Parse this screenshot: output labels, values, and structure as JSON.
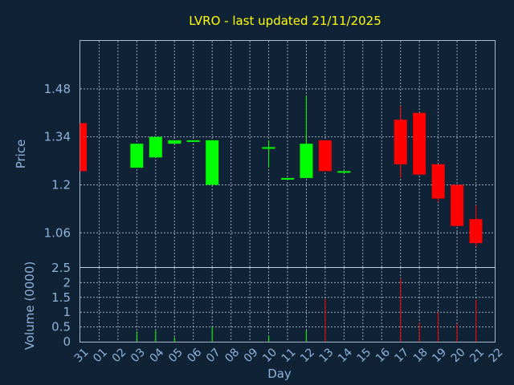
{
  "chart_data": {
    "type": "candlestick",
    "title": "LVRO - last updated 21/11/2025",
    "xlabel": "Day",
    "price_ylabel": "Price",
    "volume_ylabel": "Volume (0000)",
    "x_ticks": [
      "31",
      "01",
      "02",
      "03",
      "04",
      "05",
      "06",
      "07",
      "08",
      "09",
      "10",
      "11",
      "12",
      "13",
      "14",
      "15",
      "16",
      "17",
      "18",
      "19",
      "20",
      "21",
      "22"
    ],
    "price_ticks": [
      "1.06",
      "1.2",
      "1.34",
      "1.48"
    ],
    "price_tick_values": [
      1.06,
      1.2,
      1.34,
      1.48
    ],
    "price_ylim": [
      0.96,
      1.62
    ],
    "volume_ticks": [
      "0",
      "0.5",
      "1",
      "1.5",
      "2",
      "2.5"
    ],
    "volume_tick_values": [
      0,
      0.5,
      1,
      1.5,
      2,
      2.5
    ],
    "volume_ylim": [
      0,
      2.5
    ],
    "colors": {
      "up": "#00ff00",
      "down": "#ff0000",
      "background": "#0f2236",
      "title": "#ffff00",
      "text": "#8fb3d9"
    },
    "candles": [
      {
        "day": "31",
        "open": 1.38,
        "high": 1.38,
        "low": 1.24,
        "close": 1.24,
        "volume": 0
      },
      {
        "day": "03",
        "open": 1.25,
        "high": 1.32,
        "low": 1.25,
        "close": 1.32,
        "volume": 0.35
      },
      {
        "day": "04",
        "open": 1.28,
        "high": 1.34,
        "low": 1.28,
        "close": 1.34,
        "volume": 0.38
      },
      {
        "day": "05",
        "open": 1.32,
        "high": 1.33,
        "low": 1.32,
        "close": 1.33,
        "volume": 0.15
      },
      {
        "day": "06",
        "open": 1.33,
        "high": 1.33,
        "low": 1.33,
        "close": 1.33,
        "volume": 0
      },
      {
        "day": "07",
        "open": 1.2,
        "high": 1.33,
        "low": 1.2,
        "close": 1.33,
        "volume": 0.5
      },
      {
        "day": "10",
        "open": 1.31,
        "high": 1.33,
        "low": 1.25,
        "close": 1.31,
        "volume": 0.2
      },
      {
        "day": "11",
        "open": 1.22,
        "high": 1.22,
        "low": 1.22,
        "close": 1.22,
        "volume": 0
      },
      {
        "day": "12",
        "open": 1.22,
        "high": 1.46,
        "low": 1.22,
        "close": 1.32,
        "volume": 0.38
      },
      {
        "day": "13",
        "open": 1.33,
        "high": 1.33,
        "low": 1.24,
        "close": 1.24,
        "volume": 1.45
      },
      {
        "day": "14",
        "open": 1.24,
        "high": 1.24,
        "low": 1.24,
        "close": 1.24,
        "volume": 0
      },
      {
        "day": "17",
        "open": 1.39,
        "high": 1.43,
        "low": 1.22,
        "close": 1.26,
        "volume": 2.15
      },
      {
        "day": "18",
        "open": 1.41,
        "high": 1.41,
        "low": 1.23,
        "close": 1.23,
        "volume": 0.65
      },
      {
        "day": "19",
        "open": 1.26,
        "high": 1.26,
        "low": 1.15,
        "close": 1.16,
        "volume": 1.0
      },
      {
        "day": "20",
        "open": 1.2,
        "high": 1.2,
        "low": 1.08,
        "close": 1.08,
        "volume": 0.6
      },
      {
        "day": "21",
        "open": 1.1,
        "high": 1.14,
        "low": 1.02,
        "close": 1.03,
        "volume": 1.42
      }
    ]
  }
}
